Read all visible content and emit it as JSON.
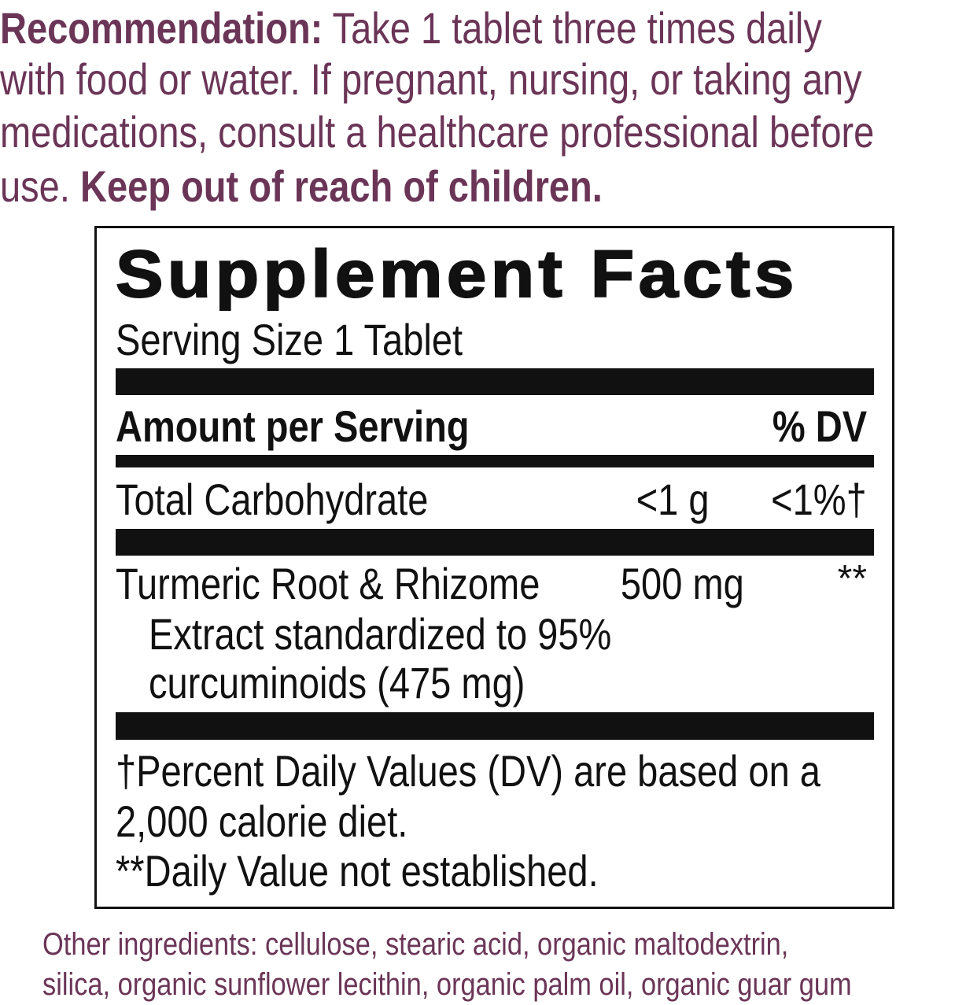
{
  "recommendation": {
    "label": "Recommendation:",
    "line1": " Take 1 tablet three times daily",
    "line2": "with food or water. If pregnant, nursing, or taking any",
    "line3": "medications, consult a healthcare professional before",
    "line4_pre": "use. ",
    "warning": "Keep out of reach of children."
  },
  "facts": {
    "title": "Supplement Facts",
    "serving_size": "Serving Size 1 Tablet",
    "header_amount": "Amount per Serving",
    "header_dv": "% DV",
    "rows": [
      {
        "name": "Total Carbohydrate",
        "amount": "<1 g",
        "dv": "<1%†"
      },
      {
        "name": "Turmeric Root & Rhizome",
        "amount": "500 mg",
        "dv": "**",
        "sub1": "Extract standardized to 95%",
        "sub2": "curcuminoids (475 mg)"
      }
    ],
    "footnote1": "†Percent Daily Values (DV) are based on a",
    "footnote2": "2,000 calorie diet.",
    "footnote3": "**Daily Value not established."
  },
  "other": {
    "line1": "Other ingredients: cellulose, stearic acid, organic maltodextrin,",
    "line2": "silica, organic sunflower lecithin, organic palm oil, organic guar gum"
  },
  "colors": {
    "accent": "#6b3557",
    "text": "#111111"
  }
}
